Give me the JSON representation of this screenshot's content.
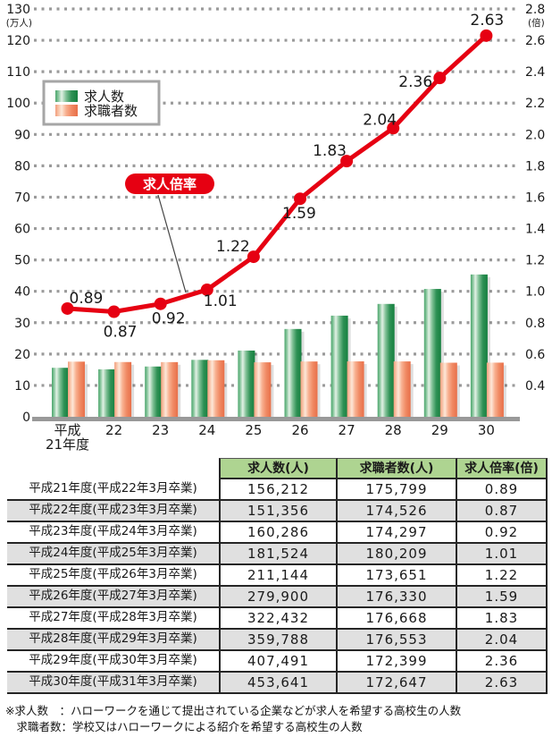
{
  "chart": {
    "left_axis_unit": "(万人)",
    "right_axis_unit": "(倍)",
    "left_ticks": [
      "0",
      "10",
      "20",
      "30",
      "40",
      "50",
      "60",
      "70",
      "80",
      "90",
      "100",
      "110",
      "120",
      "130"
    ],
    "right_ticks": [
      "0.4",
      "0.6",
      "0.8",
      "1.0",
      "1.2",
      "1.4",
      "1.6",
      "1.8",
      "2.0",
      "2.2",
      "2.4",
      "2.6",
      "2.8"
    ],
    "legend": {
      "items": [
        {
          "label": "求人数",
          "swatch": "green"
        },
        {
          "label": "求職者数",
          "swatch": "orange"
        }
      ]
    },
    "line_badge_label": "求人倍率",
    "x_ticks": [
      "平成\n21年度",
      "22",
      "23",
      "24",
      "25",
      "26",
      "27",
      "28",
      "29",
      "30"
    ]
  },
  "chart_data": {
    "type": "bar+line",
    "categories": [
      "平成21年度",
      "平成22年度",
      "平成23年度",
      "平成24年度",
      "平成25年度",
      "平成26年度",
      "平成27年度",
      "平成28年度",
      "平成29年度",
      "平成30年度"
    ],
    "series": [
      {
        "name": "求人数",
        "type": "bar",
        "axis": "left",
        "unit": "人",
        "values": [
          156212,
          151356,
          160286,
          181524,
          211144,
          279900,
          322432,
          359788,
          407491,
          453641
        ]
      },
      {
        "name": "求職者数",
        "type": "bar",
        "axis": "left",
        "unit": "人",
        "values": [
          175799,
          174526,
          174297,
          180209,
          173651,
          176330,
          176668,
          176553,
          172399,
          172647
        ]
      },
      {
        "name": "求人倍率",
        "type": "line",
        "axis": "right",
        "unit": "倍",
        "values": [
          0.89,
          0.87,
          0.92,
          1.01,
          1.22,
          1.59,
          1.83,
          2.04,
          2.36,
          2.63
        ],
        "point_labels": [
          "0.89",
          "0.87",
          "0.92",
          "1.01",
          "1.22",
          "1.59",
          "1.83",
          "2.04",
          "2.36",
          "2.63"
        ]
      }
    ],
    "left_axis": {
      "unit": "万人",
      "range": [
        0,
        130
      ],
      "tick_step": 10
    },
    "right_axis": {
      "unit": "倍",
      "range": [
        0.4,
        2.8
      ],
      "tick_step": 0.2
    },
    "grid": "dashed horizontal",
    "legend_position": "upper-left",
    "colors": {
      "bar_jobs_dark": "#15803f",
      "bar_jobs_mid": "#2f9155",
      "bar_jobs_light": "#e2f1e5",
      "bar_seekers_dark": "#e86f49",
      "bar_seekers_mid": "#f08a64",
      "bar_seekers_light": "#fde7d8",
      "line_red": "#e60012",
      "grid_gray": "#9a9a9a",
      "table_header_green": "#aed491",
      "row_stripe_gray": "#e0e0e0"
    }
  },
  "table": {
    "headers": [
      "求人数(人)",
      "求職者数(人)",
      "求人倍率(倍)"
    ],
    "rows": [
      {
        "label": "平成21年度(平成22年3月卒業)",
        "jobs": "156,212",
        "seekers": "175,799",
        "ratio": "0.89"
      },
      {
        "label": "平成22年度(平成23年3月卒業)",
        "jobs": "151,356",
        "seekers": "174,526",
        "ratio": "0.87"
      },
      {
        "label": "平成23年度(平成24年3月卒業)",
        "jobs": "160,286",
        "seekers": "174,297",
        "ratio": "0.92"
      },
      {
        "label": "平成24年度(平成25年3月卒業)",
        "jobs": "181,524",
        "seekers": "180,209",
        "ratio": "1.01"
      },
      {
        "label": "平成25年度(平成26年3月卒業)",
        "jobs": "211,144",
        "seekers": "173,651",
        "ratio": "1.22"
      },
      {
        "label": "平成26年度(平成27年3月卒業)",
        "jobs": "279,900",
        "seekers": "176,330",
        "ratio": "1.59"
      },
      {
        "label": "平成27年度(平成28年3月卒業)",
        "jobs": "322,432",
        "seekers": "176,668",
        "ratio": "1.83"
      },
      {
        "label": "平成28年度(平成29年3月卒業)",
        "jobs": "359,788",
        "seekers": "176,553",
        "ratio": "2.04"
      },
      {
        "label": "平成29年度(平成30年3月卒業)",
        "jobs": "407,491",
        "seekers": "172,399",
        "ratio": "2.36"
      },
      {
        "label": "平成30年度(平成31年3月卒業)",
        "jobs": "453,641",
        "seekers": "172,647",
        "ratio": "2.63"
      }
    ]
  },
  "footnotes": [
    "※求人数　：ハローワークを通じて提出されている企業などが求人を希望する高校生の人数",
    "　求職者数：学校又はハローワークによる紹介を希望する高校生の人数"
  ]
}
